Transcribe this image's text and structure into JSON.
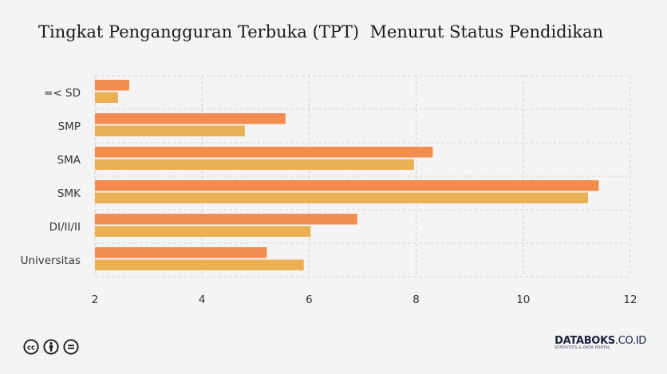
{
  "title": "Tingkat Pengangguran Terbuka (TPT)  Menurut Status Pendidikan",
  "chart_data": {
    "type": "bar",
    "orientation": "horizontal",
    "categories": [
      "=< SD",
      "SMP",
      "SMA",
      "SMK",
      "DI/II/II",
      "Universitas"
    ],
    "series": [
      {
        "color": "#f28c4f",
        "values": [
          2.64,
          5.56,
          8.31,
          11.41,
          6.9,
          5.21
        ]
      },
      {
        "color": "#eab154",
        "values": [
          2.43,
          4.8,
          7.96,
          11.21,
          6.03,
          5.9
        ]
      }
    ],
    "xlim": [
      2,
      12
    ],
    "xticks": [
      "2",
      "4",
      "6",
      "8",
      "10",
      "12"
    ],
    "grid": true,
    "xlabel": "",
    "ylabel": ""
  },
  "footer": {
    "brand": "DATABOKS",
    "brand_suffix": ".CO.ID",
    "brand_sub": "STATISTICS & DATA PORTAL",
    "icons": [
      "creative-commons-icon",
      "attribution-icon",
      "no-derivatives-icon"
    ]
  }
}
